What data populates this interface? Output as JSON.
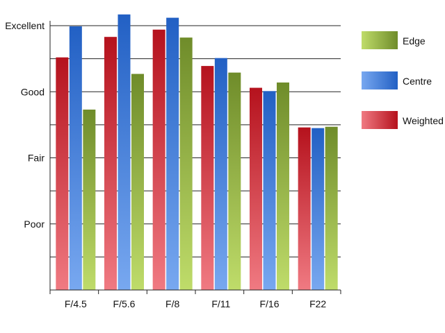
{
  "chart_data": {
    "type": "bar",
    "categories": [
      "F/4.5",
      "F/5.6",
      "F/8",
      "F/11",
      "F/16",
      "F22"
    ],
    "y_tick_labels": [
      "Poor",
      "Fair",
      "Good",
      "Excellent"
    ],
    "y_tick_values": [
      1,
      2,
      3,
      4
    ],
    "ylim": [
      0,
      4
    ],
    "grid": true,
    "legend_position": "right",
    "series": [
      {
        "name": "Weighted",
        "values": [
          3.52,
          3.83,
          3.94,
          3.39,
          3.06,
          2.46
        ]
      },
      {
        "name": "Centre",
        "values": [
          3.99,
          4.17,
          4.12,
          3.51,
          3.01,
          2.45
        ]
      },
      {
        "name": "Edge",
        "values": [
          2.73,
          3.27,
          3.82,
          3.29,
          3.14,
          2.47
        ]
      }
    ],
    "colors": {
      "Weighted": {
        "top": "#b5121d",
        "bottom": "#f07a82"
      },
      "Centre": {
        "top": "#2260c4",
        "bottom": "#78a8f0"
      },
      "Edge": {
        "top": "#6f8c2a",
        "bottom": "#bfdc6a"
      }
    },
    "legend_order": [
      "Edge",
      "Centre",
      "Weighted"
    ]
  }
}
